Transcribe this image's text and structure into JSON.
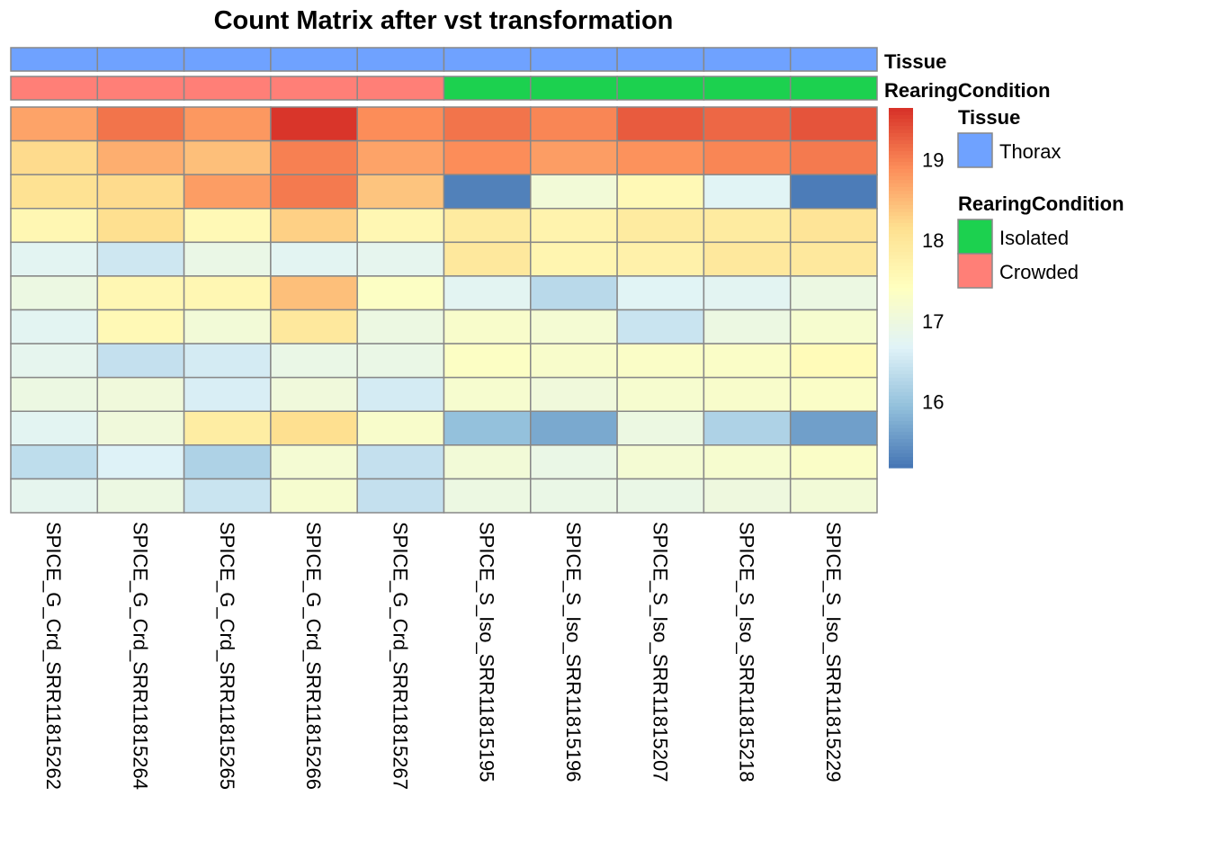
{
  "chart_data": {
    "type": "heatmap",
    "title": "Count Matrix after vst transformation",
    "columns": [
      "SPICE_G_Crd_SRR11815262",
      "SPICE_G_Crd_SRR11815264",
      "SPICE_G_Crd_SRR11815265",
      "SPICE_G_Crd_SRR11815266",
      "SPICE_G_Crd_SRR11815267",
      "SPICE_S_Iso_SRR11815195",
      "SPICE_S_Iso_SRR11815196",
      "SPICE_S_Iso_SRR11815207",
      "SPICE_S_Iso_SRR11815218",
      "SPICE_S_Iso_SRR11815229"
    ],
    "values": [
      [
        18.7,
        19.1,
        18.8,
        19.6,
        18.9,
        19.1,
        18.95,
        19.3,
        19.2,
        19.35
      ],
      [
        18.2,
        18.6,
        18.45,
        19.0,
        18.7,
        18.9,
        18.75,
        18.85,
        18.95,
        19.05
      ],
      [
        18.1,
        18.2,
        18.75,
        19.05,
        18.4,
        15.3,
        17.1,
        17.55,
        16.7,
        15.25
      ],
      [
        17.6,
        18.15,
        17.55,
        18.3,
        17.6,
        17.9,
        17.7,
        17.9,
        17.9,
        18.05
      ],
      [
        16.75,
        16.5,
        16.9,
        16.75,
        16.8,
        17.95,
        17.65,
        17.75,
        17.95,
        17.95
      ],
      [
        16.95,
        17.6,
        17.6,
        18.45,
        17.35,
        16.75,
        16.3,
        16.7,
        16.75,
        16.95
      ],
      [
        16.75,
        17.55,
        17.1,
        17.95,
        16.95,
        17.25,
        17.15,
        16.45,
        16.95,
        17.2
      ],
      [
        16.8,
        16.4,
        16.55,
        16.9,
        16.9,
        17.35,
        17.25,
        17.3,
        17.3,
        17.5
      ],
      [
        16.95,
        17.05,
        16.6,
        17.05,
        16.55,
        17.2,
        17.05,
        17.2,
        17.25,
        17.3
      ],
      [
        16.75,
        17.05,
        17.85,
        18.15,
        17.25,
        15.95,
        15.7,
        16.95,
        16.2,
        15.6
      ],
      [
        16.35,
        16.65,
        16.2,
        17.15,
        16.4,
        17.1,
        16.9,
        17.15,
        17.2,
        17.3
      ],
      [
        16.8,
        16.95,
        16.45,
        17.2,
        16.4,
        16.95,
        16.9,
        16.9,
        17.0,
        17.1
      ]
    ],
    "color_range": [
      15.18,
      19.64
    ],
    "palette": [
      "#4575B4",
      "#91BFDB",
      "#E0F3F8",
      "#FFFFBF",
      "#FEE090",
      "#FC8D59",
      "#D73027"
    ],
    "colorbar_ticks": [
      19,
      18,
      17,
      16
    ],
    "annotations": {
      "Tissue": {
        "values": [
          "Thorax",
          "Thorax",
          "Thorax",
          "Thorax",
          "Thorax",
          "Thorax",
          "Thorax",
          "Thorax",
          "Thorax",
          "Thorax"
        ],
        "legend": [
          {
            "label": "Thorax",
            "color": "#6FA2FF"
          }
        ]
      },
      "RearingCondition": {
        "values": [
          "Crowded",
          "Crowded",
          "Crowded",
          "Crowded",
          "Crowded",
          "Isolated",
          "Isolated",
          "Isolated",
          "Isolated",
          "Isolated"
        ],
        "legend": [
          {
            "label": "Isolated",
            "color": "#1CD14F"
          },
          {
            "label": "Crowded",
            "color": "#FF7F77"
          }
        ]
      }
    },
    "annotation_names": [
      "Tissue",
      "RearingCondition"
    ],
    "legend_placement": "right"
  }
}
